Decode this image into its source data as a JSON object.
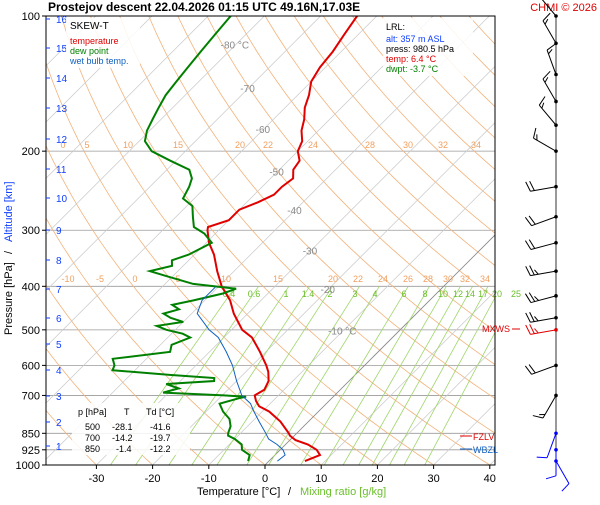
{
  "header": {
    "title": "Prostejov   descent   22.04.2026 01:15 UTC   49.16N,17.03E",
    "credit": "CHMI © 2026"
  },
  "legend": {
    "title": "SKEW-T",
    "items": [
      {
        "label": "temperature",
        "color": "#e00000"
      },
      {
        "label": "dew point",
        "color": "#008000"
      },
      {
        "label": "wet bulb temp.",
        "color": "#1060c0"
      }
    ]
  },
  "lrl_box": {
    "title": "LRL:",
    "lines": [
      {
        "text": "alt: 357 m ASL",
        "color": "#1040ff"
      },
      {
        "text": "press: 980.5 hPa",
        "color": "#000000"
      },
      {
        "text": "temp: 6.4 °C",
        "color": "#e00000"
      },
      {
        "text": "dwpt: -3.7 °C",
        "color": "#008000"
      }
    ]
  },
  "table": {
    "headers": [
      "p [hPa]",
      "T",
      "Td [°C]"
    ],
    "rows": [
      [
        "500",
        "-28.1",
        "-41.6"
      ],
      [
        "700",
        "-14.2",
        "-19.7"
      ],
      [
        "850",
        "-1.4",
        "-12.2"
      ]
    ]
  },
  "chart_data": {
    "type": "line",
    "title": "SKEW-T",
    "xlabel_left": "Temperature [°C]",
    "xlabel_sep": "/",
    "xlabel_right": "Mixing ratio [g/kg]",
    "ylabel_left": "Pressure [hPa]",
    "ylabel_sep": "/",
    "ylabel_right": "Altitude [km]",
    "x_ticks": [
      -30,
      -20,
      -10,
      0,
      10,
      20,
      30,
      40
    ],
    "x_tick_labels": [
      "-30",
      "-20",
      "-10",
      "0",
      "10",
      "20",
      "30",
      "40"
    ],
    "xlim": [
      -40,
      45
    ],
    "y_ticks": [
      1000,
      925,
      850,
      700,
      600,
      500,
      400,
      300,
      200,
      100
    ],
    "y_tick_labels": [
      "1000",
      "925",
      "850",
      "700",
      "600",
      "500",
      "400",
      "300",
      "200",
      "100"
    ],
    "ylim": [
      1000,
      100
    ],
    "altitude_km_ticks": [
      "1",
      "2",
      "3",
      "4",
      "5",
      "6",
      "7",
      "8",
      "9",
      "10",
      "11",
      "12",
      "13",
      "14",
      "15",
      "16"
    ],
    "isotherm_labels": [
      {
        "t": "-80 °C"
      },
      {
        "t": "-70"
      },
      {
        "t": "-60"
      },
      {
        "t": "-50"
      },
      {
        "t": "-40"
      },
      {
        "t": "-30"
      },
      {
        "t": "-20"
      },
      {
        "t": "-10 °C"
      }
    ],
    "theta_labels_200": [
      "0",
      "5",
      "10",
      "15",
      "20",
      "22",
      "24",
      "28",
      "30",
      "32",
      "34"
    ],
    "theta_labels_370": [
      "-10",
      "-5",
      "0",
      "5",
      "10",
      "15",
      "20",
      "22",
      "24",
      "26",
      "28",
      "30",
      "32",
      "34"
    ],
    "mixing_ratio_labels": [
      "0.4",
      "0.6",
      "1",
      "1.4",
      "2",
      "3",
      "4",
      "6",
      "8",
      "10",
      "12",
      "14",
      "17",
      "20",
      "25"
    ],
    "levels": {
      "mxws": "MXWS",
      "fzlv": "FZLV",
      "wbzl": "WBZL"
    },
    "series": [
      {
        "name": "temperature",
        "color": "#e00000",
        "points": [
          [
            980,
            6.4
          ],
          [
            950,
            8.0
          ],
          [
            925,
            6.5
          ],
          [
            900,
            4.0
          ],
          [
            880,
            1.0
          ],
          [
            860,
            -0.8
          ],
          [
            850,
            -1.4
          ],
          [
            800,
            -5.0
          ],
          [
            760,
            -8.8
          ],
          [
            740,
            -11.5
          ],
          [
            720,
            -13.0
          ],
          [
            700,
            -14.2
          ],
          [
            680,
            -13.5
          ],
          [
            650,
            -14.3
          ],
          [
            620,
            -16.0
          ],
          [
            600,
            -17.5
          ],
          [
            560,
            -21.0
          ],
          [
            520,
            -25.0
          ],
          [
            500,
            -28.1
          ],
          [
            460,
            -32.5
          ],
          [
            430,
            -35.5
          ],
          [
            400,
            -39.5
          ],
          [
            370,
            -43.0
          ],
          [
            340,
            -46.5
          ],
          [
            320,
            -49.5
          ],
          [
            300,
            -52.0
          ],
          [
            295,
            -52.5
          ],
          [
            285,
            -50.0
          ],
          [
            270,
            -50.0
          ],
          [
            260,
            -48.0
          ],
          [
            250,
            -46.5
          ],
          [
            240,
            -46.5
          ],
          [
            230,
            -46.0
          ],
          [
            220,
            -47.5
          ],
          [
            210,
            -48.0
          ],
          [
            200,
            -50.0
          ],
          [
            190,
            -51.0
          ],
          [
            180,
            -53.0
          ],
          [
            170,
            -54.5
          ],
          [
            160,
            -56.5
          ],
          [
            150,
            -58.0
          ],
          [
            140,
            -60.0
          ],
          [
            130,
            -61.0
          ],
          [
            120,
            -61.5
          ],
          [
            110,
            -62.5
          ],
          [
            100,
            -63.5
          ]
        ]
      },
      {
        "name": "dew point",
        "color": "#008000",
        "points": [
          [
            980,
            -3.7
          ],
          [
            950,
            -4.5
          ],
          [
            925,
            -6.8
          ],
          [
            900,
            -7.8
          ],
          [
            875,
            -10.0
          ],
          [
            860,
            -11.8
          ],
          [
            850,
            -12.2
          ],
          [
            820,
            -13.0
          ],
          [
            790,
            -14.5
          ],
          [
            760,
            -17.0
          ],
          [
            730,
            -19.0
          ],
          [
            710,
            -16.5
          ],
          [
            705,
            -15.5
          ],
          [
            700,
            -19.7
          ],
          [
            690,
            -31.0
          ],
          [
            675,
            -29.0
          ],
          [
            660,
            -32.0
          ],
          [
            650,
            -24.0
          ],
          [
            640,
            -24.5
          ],
          [
            630,
            -33.0
          ],
          [
            615,
            -44.0
          ],
          [
            600,
            -44.5
          ],
          [
            580,
            -46.0
          ],
          [
            560,
            -37.0
          ],
          [
            540,
            -38.0
          ],
          [
            520,
            -36.0
          ],
          [
            510,
            -38.0
          ],
          [
            500,
            -41.6
          ],
          [
            490,
            -44.0
          ],
          [
            480,
            -40.0
          ],
          [
            470,
            -43.0
          ],
          [
            460,
            -45.0
          ],
          [
            450,
            -43.0
          ],
          [
            440,
            -45.0
          ],
          [
            430,
            -42.0
          ],
          [
            415,
            -38.0
          ],
          [
            405,
            -36.5
          ],
          [
            395,
            -45.0
          ],
          [
            380,
            -51.0
          ],
          [
            370,
            -55.0
          ],
          [
            360,
            -52.0
          ],
          [
            350,
            -53.0
          ],
          [
            340,
            -51.0
          ],
          [
            320,
            -49.0
          ],
          [
            305,
            -52.0
          ],
          [
            295,
            -55.0
          ],
          [
            280,
            -57.0
          ],
          [
            265,
            -59.0
          ],
          [
            255,
            -62.0
          ],
          [
            240,
            -63.0
          ],
          [
            230,
            -64.0
          ],
          [
            220,
            -66.0
          ],
          [
            210,
            -71.0
          ],
          [
            200,
            -76.0
          ],
          [
            190,
            -79.0
          ],
          [
            180,
            -80.5
          ],
          [
            170,
            -81.5
          ],
          [
            160,
            -82.5
          ],
          [
            150,
            -83.5
          ],
          [
            140,
            -84.0
          ],
          [
            130,
            -84.5
          ],
          [
            120,
            -85.0
          ],
          [
            110,
            -85.5
          ],
          [
            100,
            -86.0
          ]
        ]
      },
      {
        "name": "wet bulb temp.",
        "color": "#1060c0",
        "points": [
          [
            980,
            1.5
          ],
          [
            950,
            1.8
          ],
          [
            925,
            0.5
          ],
          [
            900,
            -1.5
          ],
          [
            875,
            -4.0
          ],
          [
            850,
            -5.5
          ],
          [
            800,
            -8.8
          ],
          [
            760,
            -11.5
          ],
          [
            730,
            -13.5
          ],
          [
            700,
            -16.5
          ],
          [
            650,
            -20.0
          ],
          [
            600,
            -23.5
          ],
          [
            560,
            -27.0
          ],
          [
            520,
            -31.0
          ],
          [
            500,
            -34.0
          ],
          [
            460,
            -39.0
          ],
          [
            430,
            -40.5
          ],
          [
            400,
            -40.5
          ]
        ]
      }
    ],
    "wind_barbs": [
      {
        "p": 980,
        "dir": 150,
        "spd": 10,
        "color": "#0000ff"
      },
      {
        "p": 925,
        "dir": 180,
        "spd": 10,
        "color": "#0000ff"
      },
      {
        "p": 850,
        "dir": 200,
        "spd": 10,
        "color": "#0000ff"
      },
      {
        "p": 700,
        "dir": 210,
        "spd": 15,
        "color": "#000000"
      },
      {
        "p": 600,
        "dir": 250,
        "spd": 20,
        "color": "#000000"
      },
      {
        "p": 500,
        "dir": 260,
        "spd": 25,
        "color": "#e00000"
      },
      {
        "p": 470,
        "dir": 260,
        "spd": 25,
        "color": "#000000"
      },
      {
        "p": 420,
        "dir": 255,
        "spd": 25,
        "color": "#000000"
      },
      {
        "p": 370,
        "dir": 260,
        "spd": 25,
        "color": "#000000"
      },
      {
        "p": 320,
        "dir": 255,
        "spd": 20,
        "color": "#000000"
      },
      {
        "p": 280,
        "dir": 250,
        "spd": 20,
        "color": "#000000"
      },
      {
        "p": 240,
        "dir": 260,
        "spd": 20,
        "color": "#000000"
      },
      {
        "p": 200,
        "dir": 300,
        "spd": 15,
        "color": "#000000"
      },
      {
        "p": 175,
        "dir": 320,
        "spd": 15,
        "color": "#000000"
      },
      {
        "p": 155,
        "dir": 330,
        "spd": 15,
        "color": "#000000"
      },
      {
        "p": 135,
        "dir": 340,
        "spd": 15,
        "color": "#000000"
      },
      {
        "p": 115,
        "dir": 330,
        "spd": 15,
        "color": "#000000"
      },
      {
        "p": 100,
        "dir": 320,
        "spd": 15,
        "color": "#000000"
      }
    ],
    "grid": true,
    "legend_position": "top-left"
  }
}
